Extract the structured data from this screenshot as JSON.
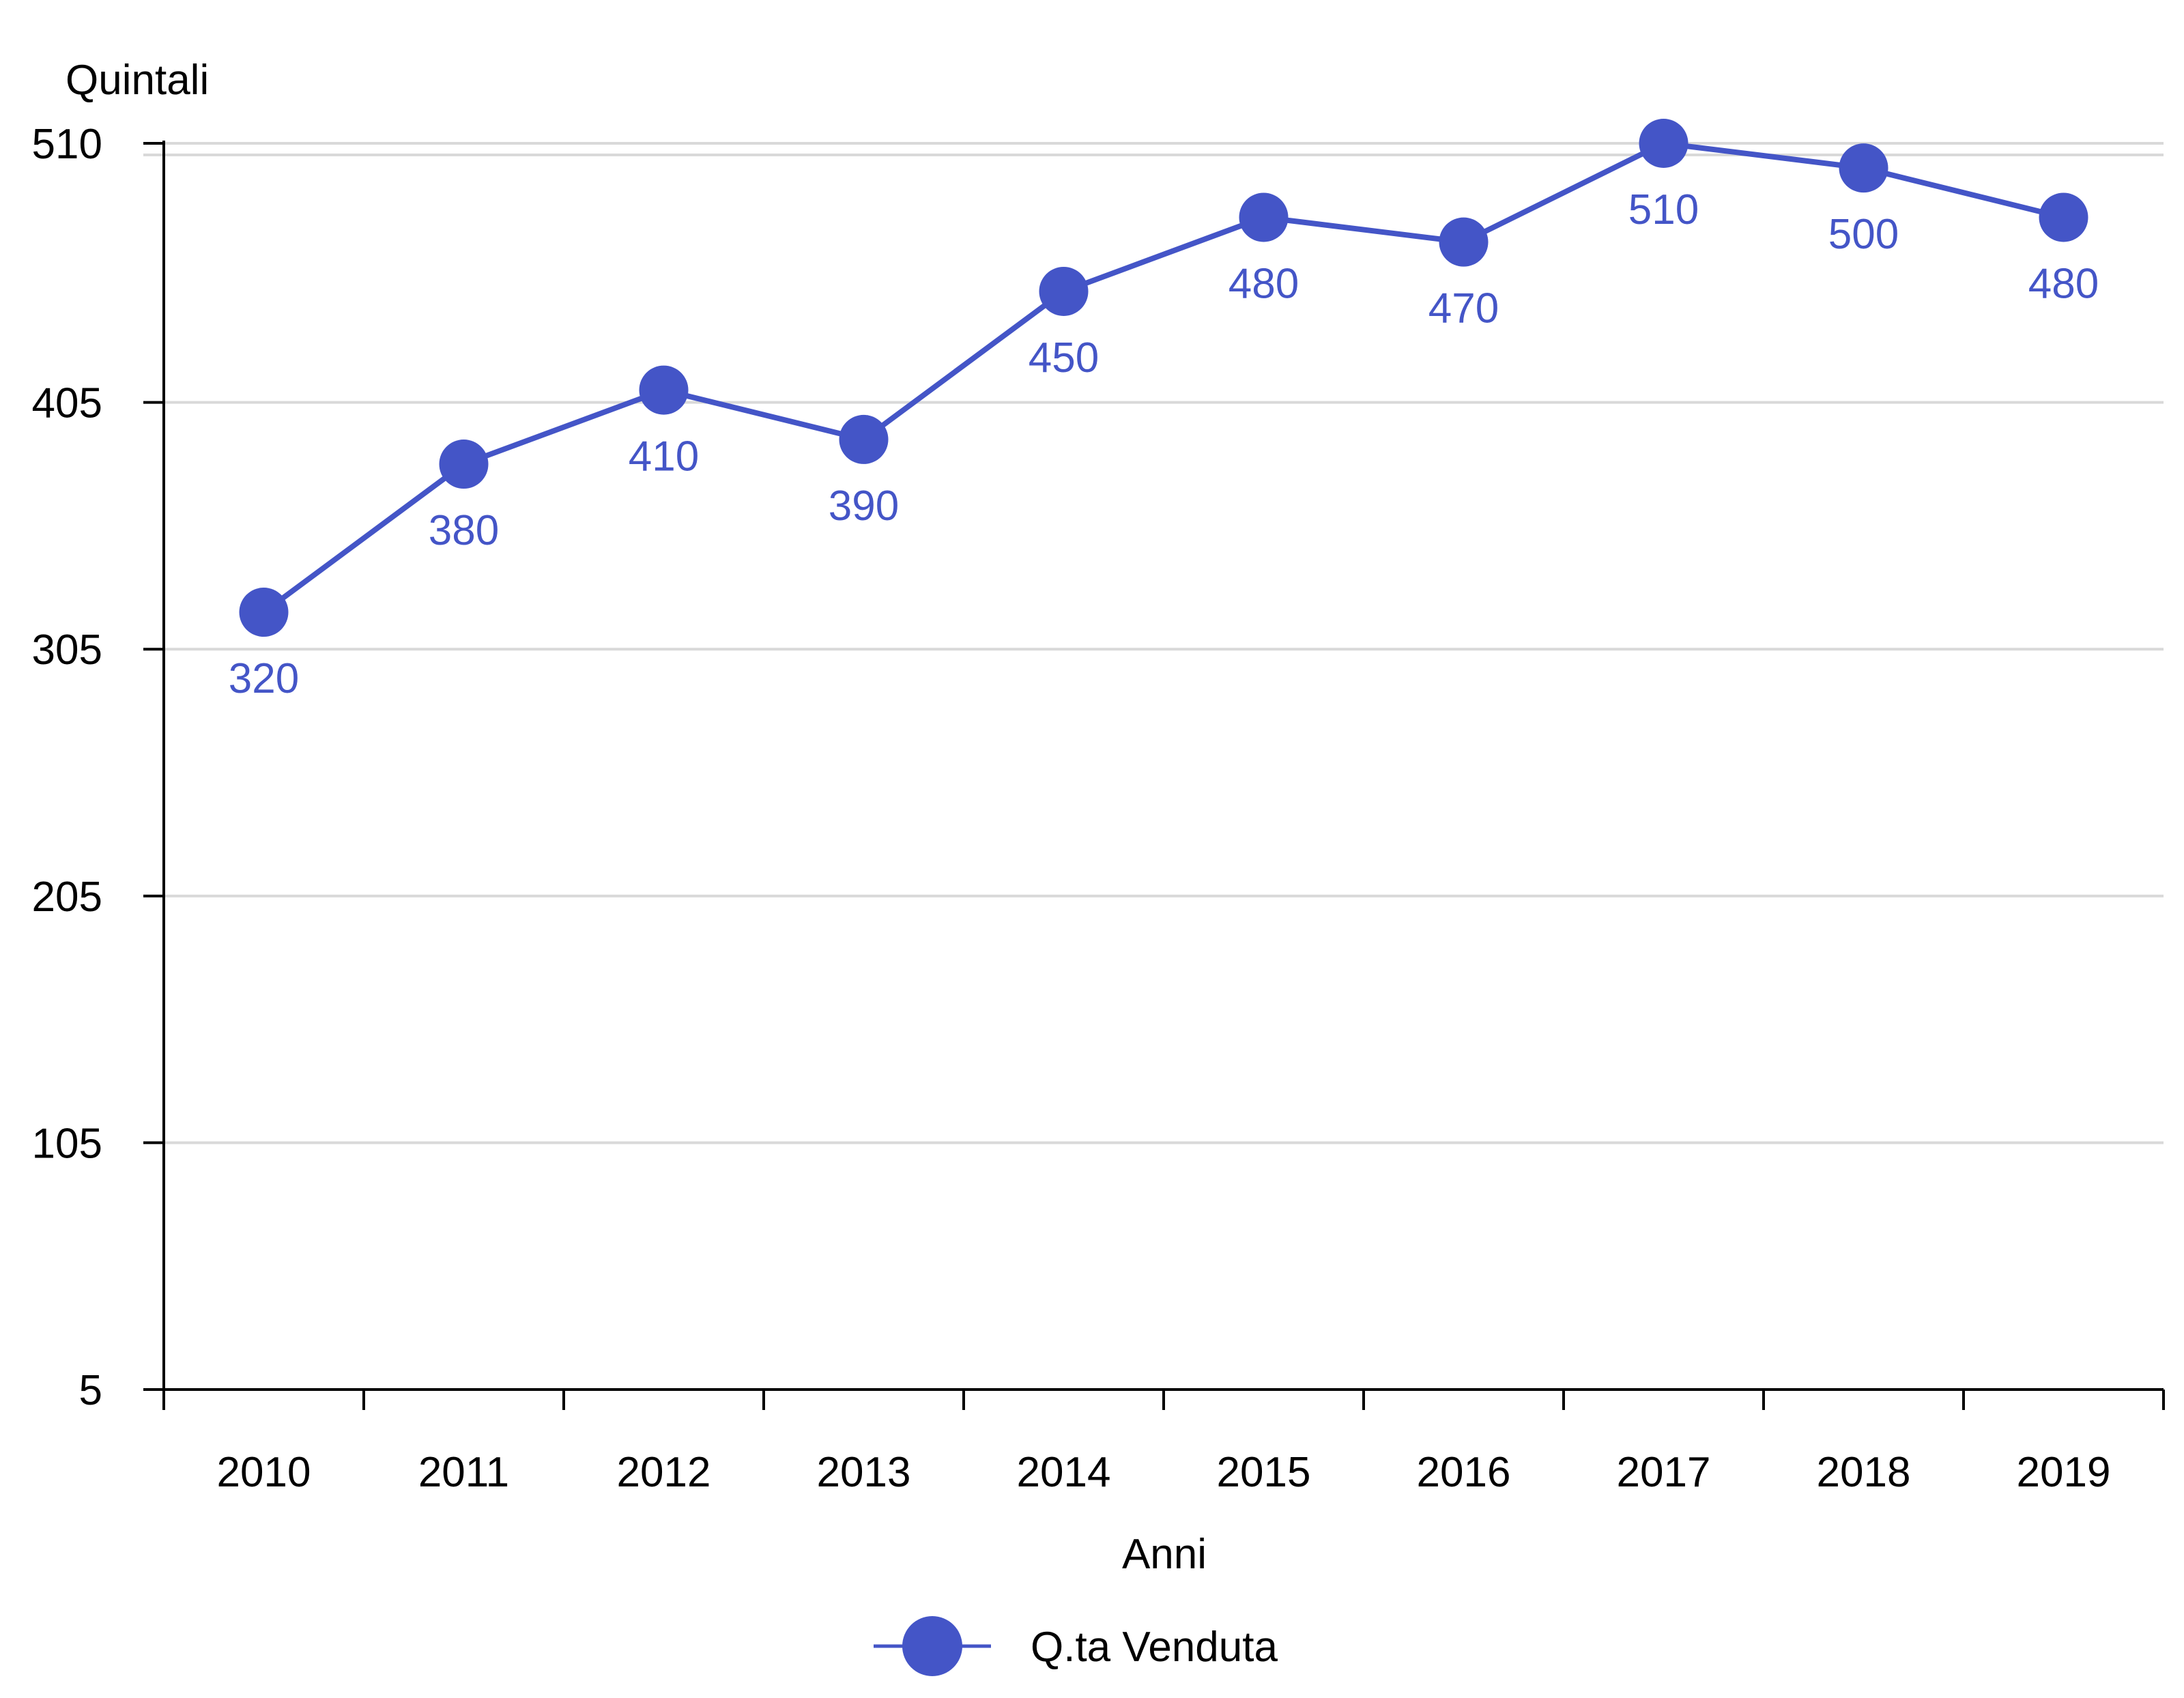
{
  "chart_data": {
    "type": "line",
    "title": "",
    "xlabel": "Anni",
    "ylabel": "Quintali",
    "categories": [
      "2010",
      "2011",
      "2012",
      "2013",
      "2014",
      "2015",
      "2016",
      "2017",
      "2018",
      "2019"
    ],
    "series": [
      {
        "name": "Q.ta Venduta",
        "color": "#4455c7",
        "values": [
          320,
          380,
          410,
          390,
          450,
          480,
          470,
          510,
          500,
          480
        ],
        "data_labels": [
          "320",
          "380",
          "410",
          "390",
          "450",
          "480",
          "470",
          "510",
          "500",
          "480"
        ]
      }
    ],
    "yticks": [
      "5",
      "105",
      "205",
      "305",
      "405",
      "510"
    ],
    "ylim": [
      5,
      510
    ],
    "grid": true,
    "legend": "bottom"
  }
}
